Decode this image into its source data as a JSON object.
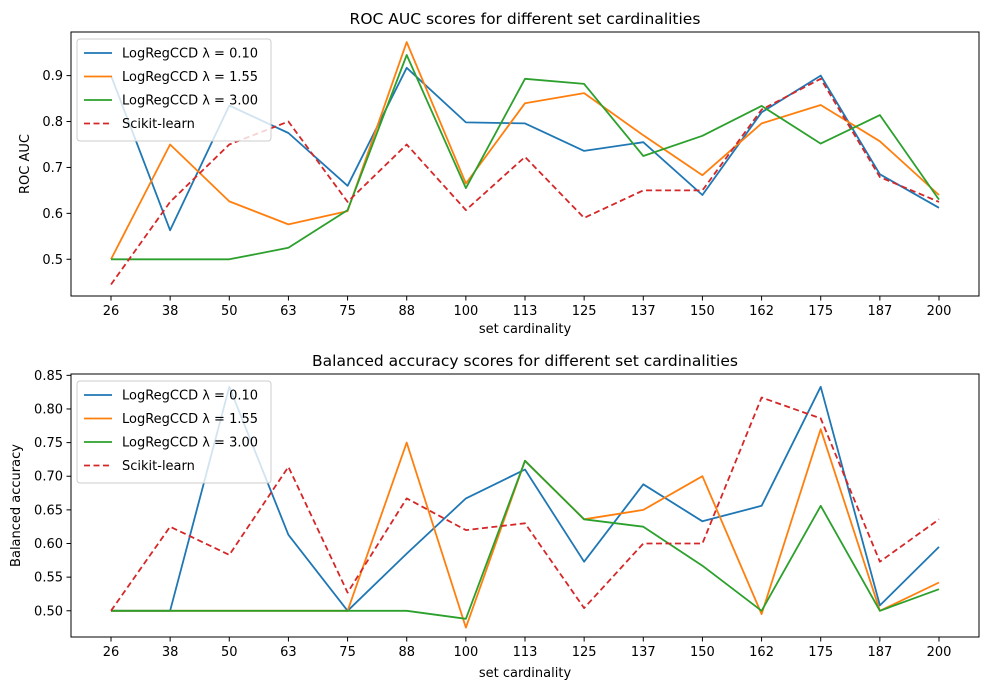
{
  "chart_data": [
    {
      "type": "line",
      "title": "ROC AUC scores for different set cardinalities",
      "xlabel": "set cardinality",
      "ylabel": "ROC AUC",
      "categories": [
        "26",
        "38",
        "50",
        "63",
        "75",
        "88",
        "100",
        "113",
        "125",
        "137",
        "150",
        "162",
        "175",
        "187",
        "200"
      ],
      "ylim": [
        0.42,
        0.995
      ],
      "yticks": [
        "0.5",
        "0.6",
        "0.7",
        "0.8",
        "0.9"
      ],
      "grid": false,
      "legend_position": "top-left",
      "series": [
        {
          "name": "LogRegCCD λ = 0.10",
          "color": "#1f77b4",
          "dash": false,
          "values": [
            0.9,
            0.563,
            0.835,
            0.775,
            0.66,
            0.917,
            0.798,
            0.796,
            0.736,
            0.755,
            0.64,
            0.82,
            0.9,
            0.685,
            0.612
          ]
        },
        {
          "name": "LogRegCCD λ = 1.55",
          "color": "#ff7f0e",
          "dash": false,
          "values": [
            0.5,
            0.75,
            0.626,
            0.576,
            0.605,
            0.973,
            0.665,
            0.84,
            0.862,
            0.77,
            0.683,
            0.796,
            0.836,
            0.757,
            0.64
          ]
        },
        {
          "name": "LogRegCCD λ = 3.00",
          "color": "#2ca02c",
          "dash": false,
          "values": [
            0.5,
            0.5,
            0.5,
            0.525,
            0.607,
            0.945,
            0.655,
            0.893,
            0.882,
            0.725,
            0.769,
            0.834,
            0.752,
            0.814,
            0.63
          ]
        },
        {
          "name": "Scikit-learn",
          "color": "#d62728",
          "dash": true,
          "values": [
            0.445,
            0.625,
            0.75,
            0.8,
            0.625,
            0.75,
            0.607,
            0.723,
            0.59,
            0.65,
            0.65,
            0.826,
            0.893,
            0.679,
            0.625
          ]
        }
      ]
    },
    {
      "type": "line",
      "title": "Balanced accuracy scores for different set cardinalities",
      "xlabel": "set cardinality",
      "ylabel": "Balanced accuracy",
      "categories": [
        "26",
        "38",
        "50",
        "63",
        "75",
        "88",
        "100",
        "113",
        "125",
        "137",
        "150",
        "162",
        "175",
        "187",
        "200"
      ],
      "ylim": [
        0.461,
        0.852
      ],
      "yticks": [
        "0.50",
        "0.55",
        "0.60",
        "0.65",
        "0.70",
        "0.75",
        "0.80",
        "0.85"
      ],
      "grid": false,
      "legend_position": "top-left",
      "series": [
        {
          "name": "LogRegCCD λ = 0.10",
          "color": "#1f77b4",
          "dash": false,
          "values": [
            0.5,
            0.5,
            0.833,
            0.613,
            0.5,
            0.585,
            0.667,
            0.71,
            0.573,
            0.688,
            0.633,
            0.656,
            0.833,
            0.508,
            0.595
          ]
        },
        {
          "name": "LogRegCCD λ = 1.55",
          "color": "#ff7f0e",
          "dash": false,
          "values": [
            0.5,
            0.5,
            0.5,
            0.5,
            0.5,
            0.75,
            0.475,
            0.723,
            0.636,
            0.65,
            0.7,
            0.495,
            0.77,
            0.5,
            0.542
          ]
        },
        {
          "name": "LogRegCCD λ = 3.00",
          "color": "#2ca02c",
          "dash": false,
          "values": [
            0.5,
            0.5,
            0.5,
            0.5,
            0.5,
            0.5,
            0.488,
            0.723,
            0.636,
            0.625,
            0.567,
            0.5,
            0.656,
            0.5,
            0.532
          ]
        },
        {
          "name": "Scikit-learn",
          "color": "#d62728",
          "dash": true,
          "values": [
            0.5,
            0.625,
            0.583,
            0.714,
            0.527,
            0.667,
            0.62,
            0.63,
            0.504,
            0.6,
            0.6,
            0.817,
            0.786,
            0.573,
            0.636
          ]
        }
      ]
    }
  ]
}
